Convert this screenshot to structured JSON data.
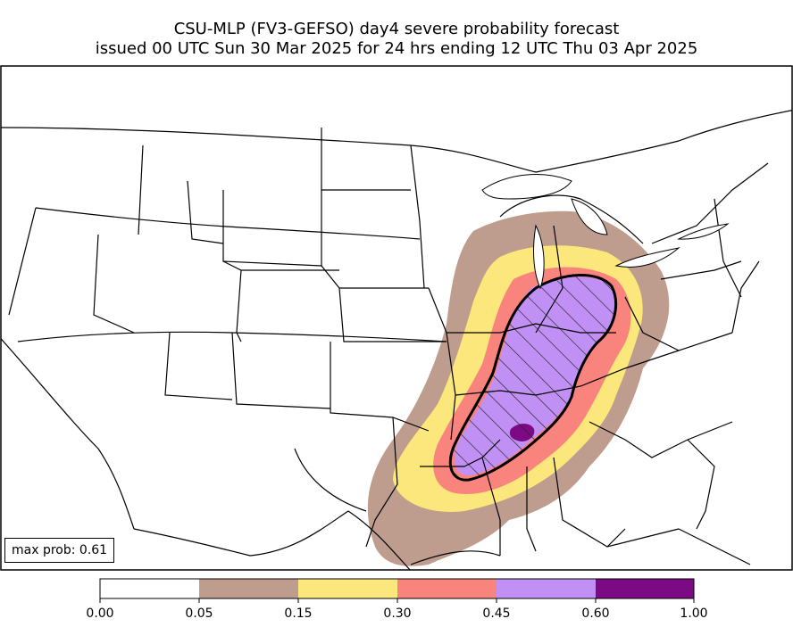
{
  "title_line1": "CSU-MLP (FV3-GEFSO) day4 severe probability forecast",
  "title_line2": "issued 00 UTC Sun 30 Mar 2025 for 24 hrs ending 12 UTC Thu 03 Apr 2025",
  "max_prob_label": "max prob: 0.61",
  "colorbar": {
    "ticks": [
      "0.00",
      "0.05",
      "0.15",
      "0.30",
      "0.45",
      "0.60",
      "1.00"
    ],
    "colors": [
      "#ffffff",
      "#bf9d8e",
      "#fbe77c",
      "#f9837d",
      "#c190f4",
      "#7d0a85"
    ]
  },
  "hatched_region": "significant severe (hatched, black contour)"
}
